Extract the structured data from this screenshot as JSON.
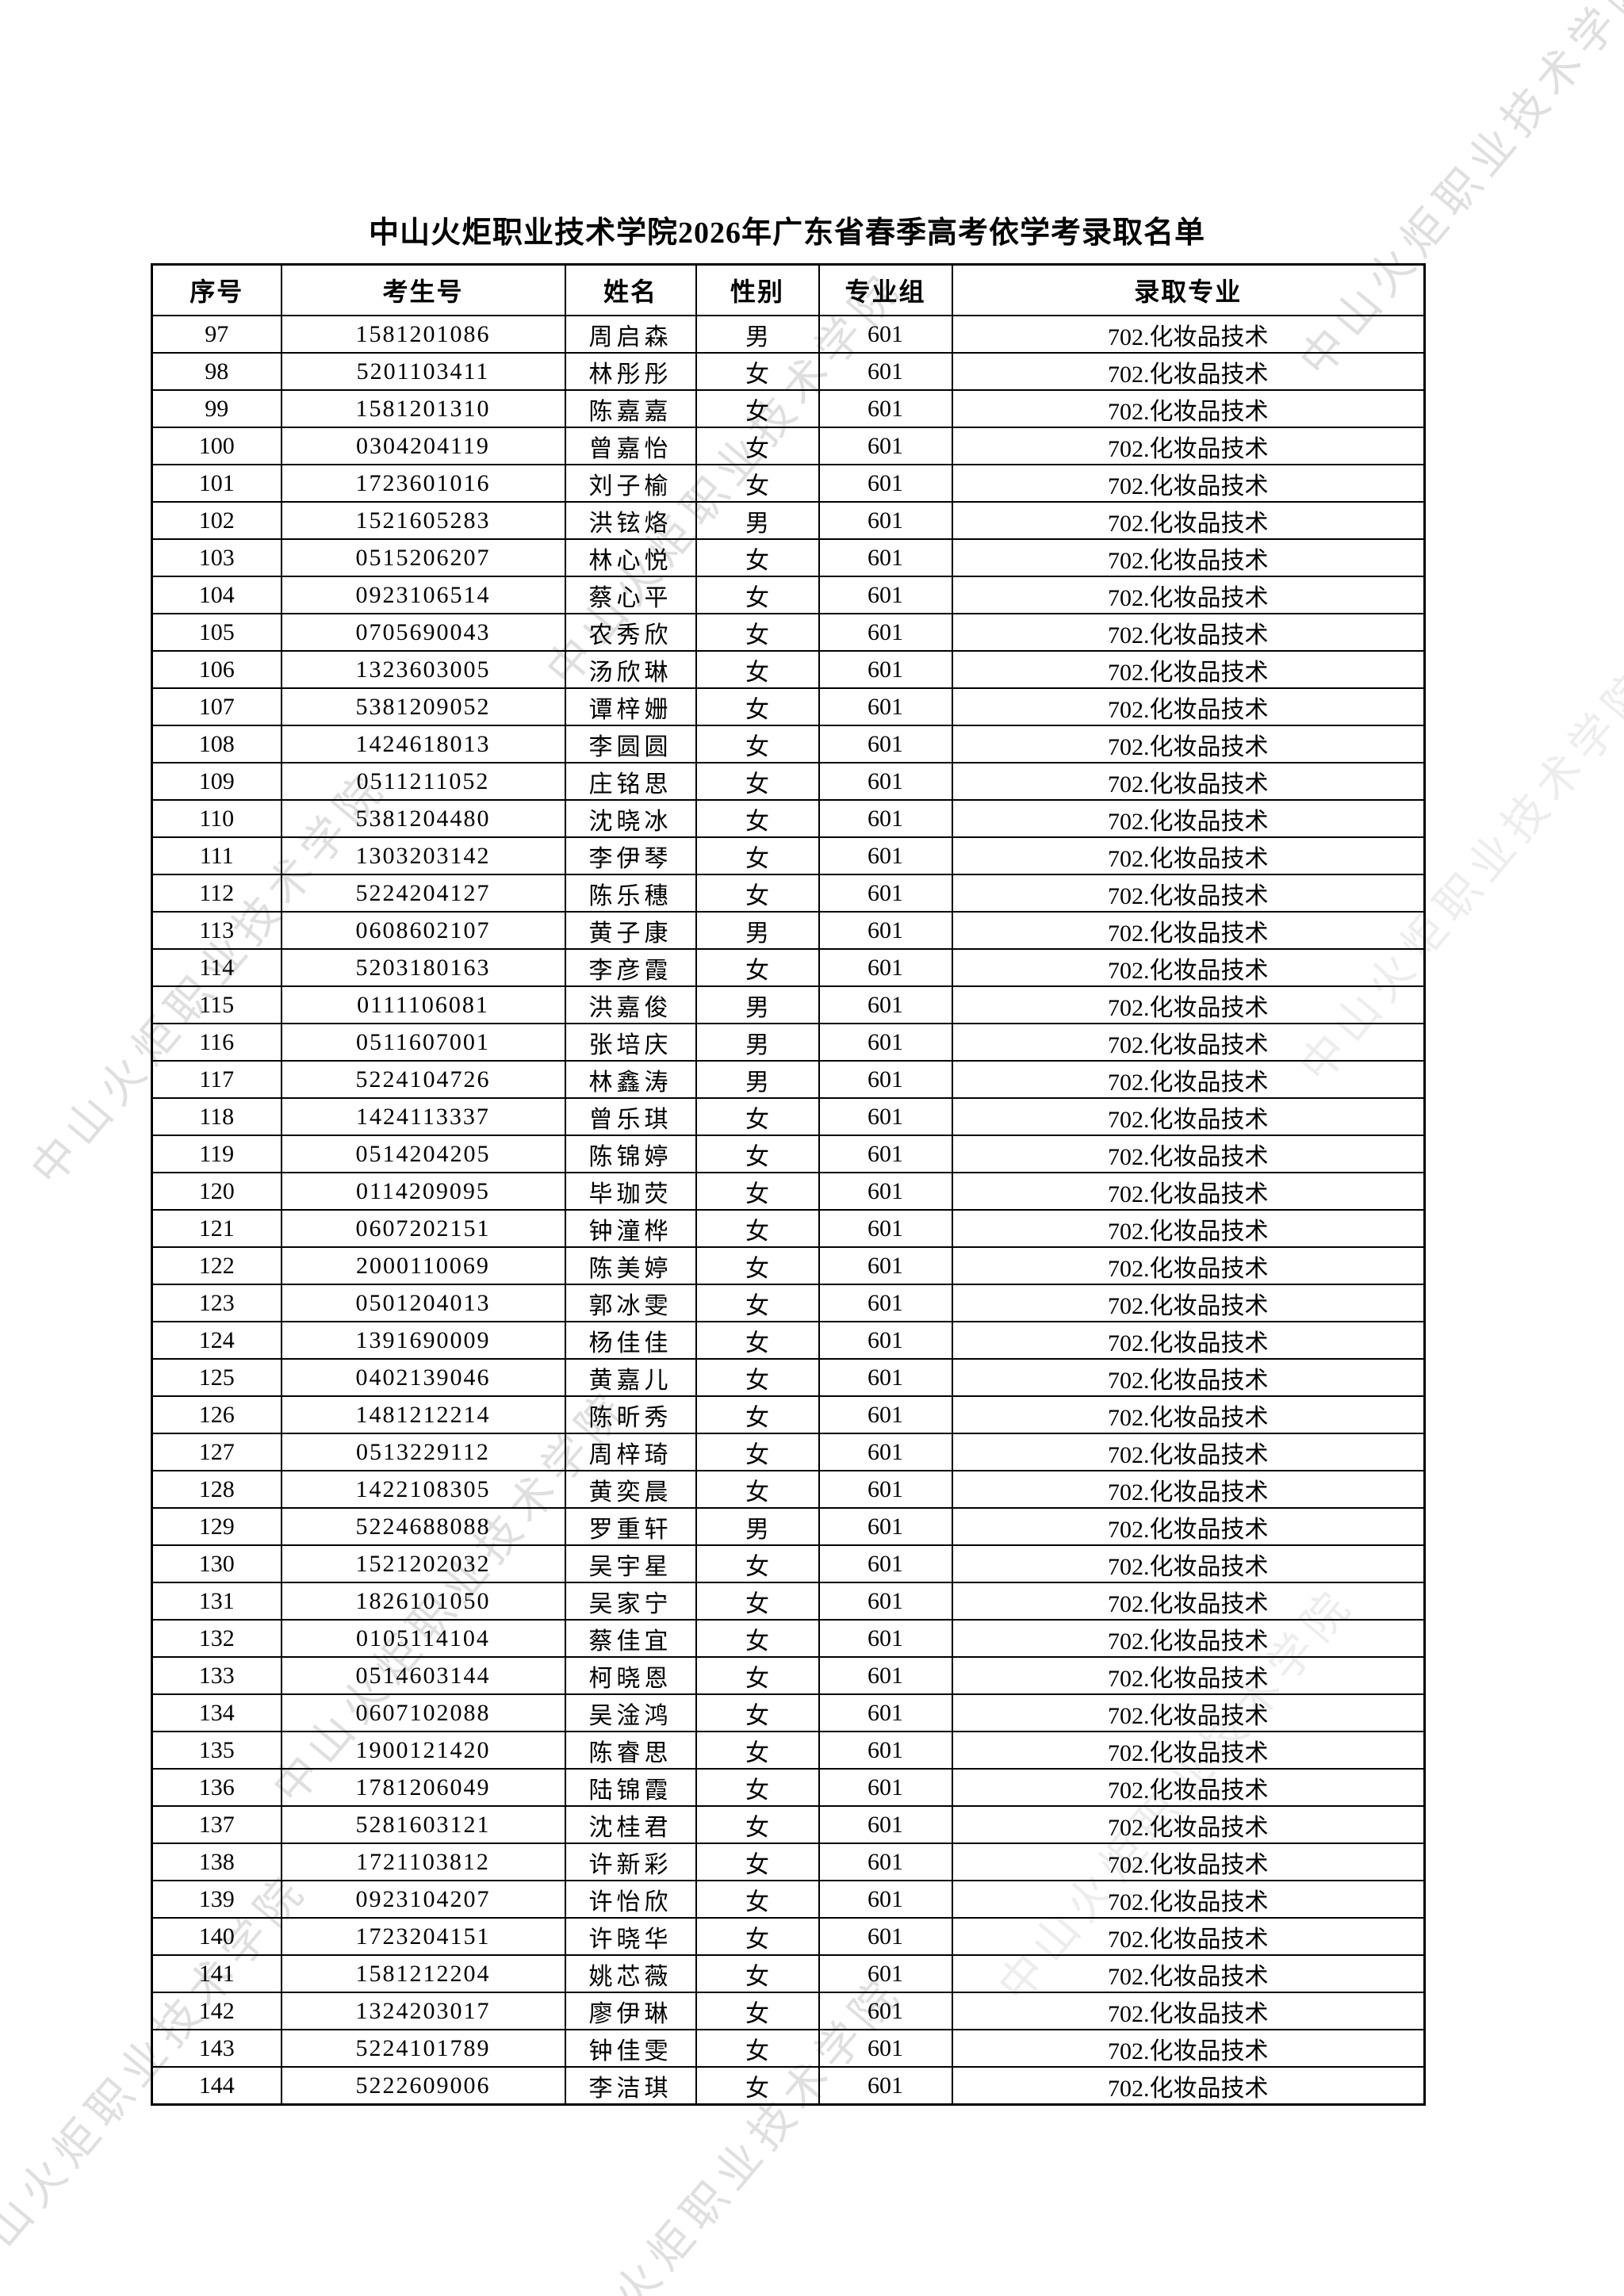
{
  "page": {
    "title": "中山火炬职业技术学院2026年广东省春季高考依学考录取名单"
  },
  "watermark": {
    "text": "中山火炬职业技术学院",
    "color": "#c6c6c6"
  },
  "table": {
    "headers": [
      "序号",
      "考生号",
      "姓名",
      "性别",
      "专业组",
      "录取专业"
    ],
    "rows": [
      [
        "97",
        "1581201086",
        "周启森",
        "男",
        "601",
        "702.化妆品技术"
      ],
      [
        "98",
        "5201103411",
        "林彤彤",
        "女",
        "601",
        "702.化妆品技术"
      ],
      [
        "99",
        "1581201310",
        "陈嘉嘉",
        "女",
        "601",
        "702.化妆品技术"
      ],
      [
        "100",
        "0304204119",
        "曾嘉怡",
        "女",
        "601",
        "702.化妆品技术"
      ],
      [
        "101",
        "1723601016",
        "刘子榆",
        "女",
        "601",
        "702.化妆品技术"
      ],
      [
        "102",
        "1521605283",
        "洪铉烙",
        "男",
        "601",
        "702.化妆品技术"
      ],
      [
        "103",
        "0515206207",
        "林心悦",
        "女",
        "601",
        "702.化妆品技术"
      ],
      [
        "104",
        "0923106514",
        "蔡心平",
        "女",
        "601",
        "702.化妆品技术"
      ],
      [
        "105",
        "0705690043",
        "农秀欣",
        "女",
        "601",
        "702.化妆品技术"
      ],
      [
        "106",
        "1323603005",
        "汤欣琳",
        "女",
        "601",
        "702.化妆品技术"
      ],
      [
        "107",
        "5381209052",
        "谭梓姗",
        "女",
        "601",
        "702.化妆品技术"
      ],
      [
        "108",
        "1424618013",
        "李圆圆",
        "女",
        "601",
        "702.化妆品技术"
      ],
      [
        "109",
        "0511211052",
        "庄铭思",
        "女",
        "601",
        "702.化妆品技术"
      ],
      [
        "110",
        "5381204480",
        "沈晓冰",
        "女",
        "601",
        "702.化妆品技术"
      ],
      [
        "111",
        "1303203142",
        "李伊琴",
        "女",
        "601",
        "702.化妆品技术"
      ],
      [
        "112",
        "5224204127",
        "陈乐穗",
        "女",
        "601",
        "702.化妆品技术"
      ],
      [
        "113",
        "0608602107",
        "黄子康",
        "男",
        "601",
        "702.化妆品技术"
      ],
      [
        "114",
        "5203180163",
        "李彦霞",
        "女",
        "601",
        "702.化妆品技术"
      ],
      [
        "115",
        "0111106081",
        "洪嘉俊",
        "男",
        "601",
        "702.化妆品技术"
      ],
      [
        "116",
        "0511607001",
        "张培庆",
        "男",
        "601",
        "702.化妆品技术"
      ],
      [
        "117",
        "5224104726",
        "林鑫涛",
        "男",
        "601",
        "702.化妆品技术"
      ],
      [
        "118",
        "1424113337",
        "曾乐琪",
        "女",
        "601",
        "702.化妆品技术"
      ],
      [
        "119",
        "0514204205",
        "陈锦婷",
        "女",
        "601",
        "702.化妆品技术"
      ],
      [
        "120",
        "0114209095",
        "毕珈荧",
        "女",
        "601",
        "702.化妆品技术"
      ],
      [
        "121",
        "0607202151",
        "钟潼桦",
        "女",
        "601",
        "702.化妆品技术"
      ],
      [
        "122",
        "2000110069",
        "陈美婷",
        "女",
        "601",
        "702.化妆品技术"
      ],
      [
        "123",
        "0501204013",
        "郭冰雯",
        "女",
        "601",
        "702.化妆品技术"
      ],
      [
        "124",
        "1391690009",
        "杨佳佳",
        "女",
        "601",
        "702.化妆品技术"
      ],
      [
        "125",
        "0402139046",
        "黄嘉儿",
        "女",
        "601",
        "702.化妆品技术"
      ],
      [
        "126",
        "1481212214",
        "陈昕秀",
        "女",
        "601",
        "702.化妆品技术"
      ],
      [
        "127",
        "0513229112",
        "周梓琦",
        "女",
        "601",
        "702.化妆品技术"
      ],
      [
        "128",
        "1422108305",
        "黄奕晨",
        "女",
        "601",
        "702.化妆品技术"
      ],
      [
        "129",
        "5224688088",
        "罗重轩",
        "男",
        "601",
        "702.化妆品技术"
      ],
      [
        "130",
        "1521202032",
        "吴宇星",
        "女",
        "601",
        "702.化妆品技术"
      ],
      [
        "131",
        "1826101050",
        "吴家宁",
        "女",
        "601",
        "702.化妆品技术"
      ],
      [
        "132",
        "0105114104",
        "蔡佳宜",
        "女",
        "601",
        "702.化妆品技术"
      ],
      [
        "133",
        "0514603144",
        "柯晓恩",
        "女",
        "601",
        "702.化妆品技术"
      ],
      [
        "134",
        "0607102088",
        "吴淦鸿",
        "女",
        "601",
        "702.化妆品技术"
      ],
      [
        "135",
        "1900121420",
        "陈睿思",
        "女",
        "601",
        "702.化妆品技术"
      ],
      [
        "136",
        "1781206049",
        "陆锦霞",
        "女",
        "601",
        "702.化妆品技术"
      ],
      [
        "137",
        "5281603121",
        "沈桂君",
        "女",
        "601",
        "702.化妆品技术"
      ],
      [
        "138",
        "1721103812",
        "许新彩",
        "女",
        "601",
        "702.化妆品技术"
      ],
      [
        "139",
        "0923104207",
        "许怡欣",
        "女",
        "601",
        "702.化妆品技术"
      ],
      [
        "140",
        "1723204151",
        "许晓华",
        "女",
        "601",
        "702.化妆品技术"
      ],
      [
        "141",
        "1581212204",
        "姚芯薇",
        "女",
        "601",
        "702.化妆品技术"
      ],
      [
        "142",
        "1324203017",
        "廖伊琳",
        "女",
        "601",
        "702.化妆品技术"
      ],
      [
        "143",
        "5224101789",
        "钟佳雯",
        "女",
        "601",
        "702.化妆品技术"
      ],
      [
        "144",
        "5222609006",
        "李洁琪",
        "女",
        "601",
        "702.化妆品技术"
      ]
    ]
  }
}
